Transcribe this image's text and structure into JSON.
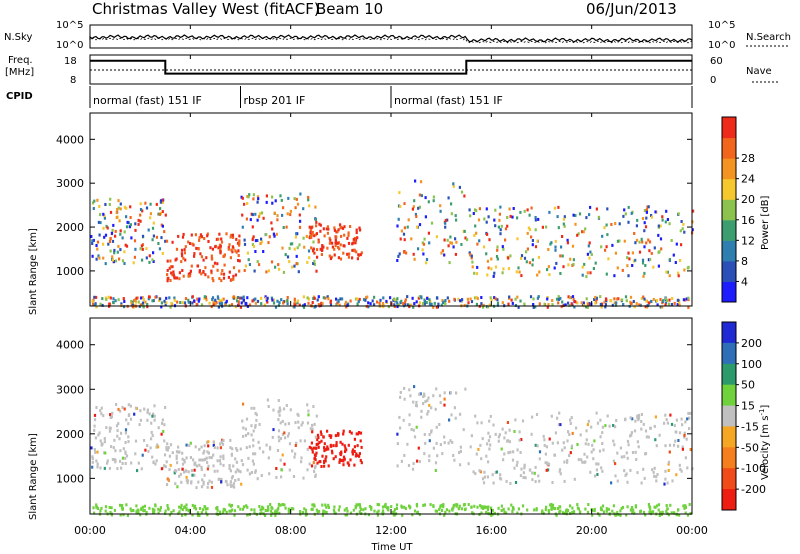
{
  "header": {
    "station": "Christmas Valley West (fitACF)",
    "beam": "Beam 10",
    "date": "06/Jun/2013"
  },
  "colors": {
    "grey_scatter": "#c0c0c0",
    "trace": "#000000"
  },
  "chart_data": [
    {
      "type": "line",
      "panel": "noise",
      "left_label": "N.Sky",
      "right_label": "N.Search",
      "y_ticks_left": [
        "10^5",
        "10^0"
      ],
      "y_ticks_right": [
        "10^5",
        "10^0"
      ],
      "xlim": [
        0,
        24
      ]
    },
    {
      "type": "line",
      "panel": "frequency",
      "left_label_lines": [
        "Freq.",
        "[MHz]"
      ],
      "right_label": "Nave",
      "y_ticks_left": [
        "18",
        "8"
      ],
      "y_ticks_right": [
        "60",
        "0"
      ],
      "series": [
        {
          "x": [
            0,
            3,
            3,
            15,
            15,
            24
          ],
          "values": [
            16,
            16,
            11.6,
            11.6,
            16,
            16
          ]
        }
      ],
      "xlim": [
        0,
        24
      ]
    },
    {
      "type": "table",
      "panel": "cpid",
      "label": "CPID",
      "modes": [
        {
          "label": "normal (fast) 151 IF",
          "start": 0,
          "end": 6
        },
        {
          "label": "rbsp 201 IF",
          "start": 6,
          "end": 12
        },
        {
          "label": "normal (fast) 151 IF",
          "start": 12,
          "end": 24
        }
      ]
    },
    {
      "type": "heatmap",
      "panel": "power",
      "ylabel": "Slant Range [km]",
      "y_ticks": [
        1000,
        2000,
        3000,
        4000
      ],
      "ylim": [
        200,
        4600
      ],
      "xlim": [
        0,
        24
      ],
      "colorbar": {
        "label": "Power [dB]",
        "ticks": [
          "4",
          "8",
          "12",
          "16",
          "20",
          "24",
          "28"
        ],
        "colors": [
          "#1c1cff",
          "#2a50b8",
          "#2e7fb0",
          "#3c9e6e",
          "#8cc34e",
          "#f5c82e",
          "#f39322",
          "#f2651d",
          "#ee2a1a"
        ]
      }
    },
    {
      "type": "heatmap",
      "panel": "velocity",
      "ylabel": "Slant Range [km]",
      "y_ticks": [
        1000,
        2000,
        3000,
        4000
      ],
      "ylim": [
        200,
        4600
      ],
      "xlim": [
        0,
        24
      ],
      "colorbar": {
        "label": "Velocity [m s^-1]",
        "ticks": [
          "200",
          "100",
          "50",
          "15",
          "-15",
          "-50",
          "-100",
          "-200"
        ],
        "colors": [
          "#1f2ad4",
          "#2e6fb8",
          "#2c9a6b",
          "#6fd23c",
          "#c0c0c0",
          "#f5a623",
          "#f57e1e",
          "#f24b1a",
          "#ee1d12"
        ]
      }
    }
  ],
  "x_axis": {
    "xlabel": "Time UT",
    "ticks": [
      "00:00",
      "04:00",
      "08:00",
      "12:00",
      "16:00",
      "20:00",
      "00:00"
    ]
  }
}
